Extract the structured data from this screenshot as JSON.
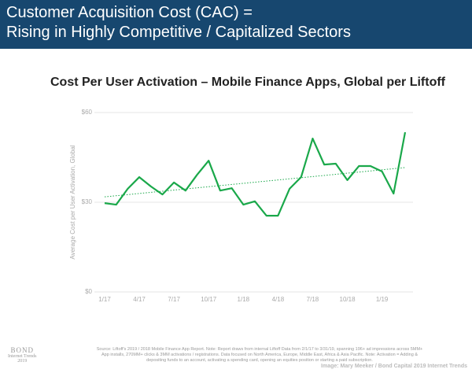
{
  "header": {
    "title_lines": [
      "Customer Acquisition Cost (CAC) =",
      "Rising in Highly Competitive / Capitalized Sectors"
    ]
  },
  "chart_data": {
    "type": "line",
    "title": "Cost Per User Activation – Mobile Finance Apps, Global per Liftoff",
    "y_label": "Average Cost per User Activation, Global",
    "categories": [
      "1/17",
      null,
      null,
      "4/17",
      null,
      null,
      "7/17",
      null,
      null,
      "10/17",
      null,
      null,
      "1/18",
      null,
      null,
      "4/18",
      null,
      null,
      "7/18",
      null,
      null,
      "10/18",
      null,
      null,
      "1/19",
      null,
      null
    ],
    "series": [
      {
        "color": "#1aa84a",
        "values": [
          29.7,
          29.2,
          34.5,
          38.4,
          35.3,
          32.6,
          36.6,
          33.9,
          39.2,
          43.9,
          33.9,
          34.7,
          29.2,
          30.3,
          25.5,
          25.5,
          34.5,
          38.4,
          51.3,
          42.6,
          42.9,
          37.4,
          42.1,
          42.1,
          40.3,
          32.9,
          53.4
        ]
      }
    ],
    "trend": {
      "color": "#1aa84a",
      "values": [
        31.8,
        41.6
      ]
    },
    "ylim": [
      0,
      60
    ],
    "yticks": [
      {
        "value": 0,
        "label": "$0"
      },
      {
        "value": 30,
        "label": "$30"
      },
      {
        "value": 60,
        "label": "$60"
      }
    ]
  },
  "footer": {
    "source": "Source: Liftoff's 2019 / 2018 Mobile Finance App Report. Note: Report draws from internal Liftoff Data from 2/1/17 to 3/31/19, spanning 196+ ad impressions across 5MM+ App installs, 270MM+ clicks & 3MM activations / registrations. Data focused on North America, Europe, Middle East, Africa & Asia Pacific. Note: Activation = Adding & depositing funds to an account, activating a spending card, opening an equities position or starting a paid subscription.",
    "logo": [
      "BOND",
      "Internet Trends",
      "2019"
    ],
    "credit": "Image: Mary Meeker / Bond Capital 2019 Internet Trends"
  }
}
